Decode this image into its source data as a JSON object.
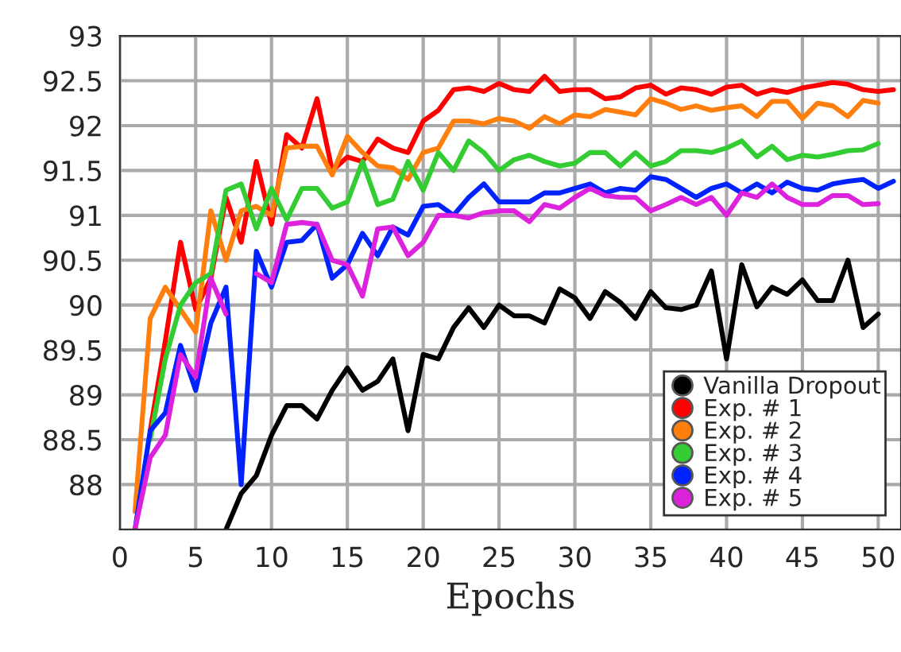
{
  "chart_data": {
    "type": "line",
    "xlabel": "Epochs",
    "xlim": [
      0,
      51.5
    ],
    "ylim": [
      87.5,
      93
    ],
    "xticks": [
      0,
      5,
      10,
      15,
      20,
      25,
      30,
      35,
      40,
      45,
      50
    ],
    "yticks": [
      88,
      88.5,
      89,
      89.5,
      90,
      90.5,
      91,
      91.5,
      92,
      92.5,
      93
    ],
    "grid": true,
    "legend": "bottom right",
    "marker": "none",
    "line_style": "solid",
    "series": [
      {
        "name": "Vanilla Dropout",
        "color": "#000000",
        "x": [
          7,
          8,
          9,
          10,
          11,
          12,
          13,
          14,
          15,
          16,
          17,
          18,
          19,
          20,
          21,
          22,
          23,
          24,
          25,
          26,
          27,
          28,
          29,
          30,
          31,
          32,
          33,
          34,
          35,
          36,
          37,
          38,
          39,
          40,
          41,
          42,
          43,
          44,
          45,
          46,
          47,
          48,
          49,
          50
        ],
        "values": [
          87.5,
          87.9,
          88.1,
          88.55,
          88.88,
          88.88,
          88.73,
          89.05,
          89.3,
          89.05,
          89.15,
          89.4,
          88.6,
          89.45,
          89.4,
          89.75,
          89.97,
          89.75,
          90.0,
          89.88,
          89.88,
          89.8,
          90.18,
          90.08,
          89.85,
          90.15,
          90.03,
          89.85,
          90.15,
          89.97,
          89.95,
          90.0,
          90.38,
          89.4,
          90.45,
          89.98,
          90.2,
          90.12,
          90.28,
          90.05,
          90.05,
          90.5,
          89.75,
          89.9
        ]
      },
      {
        "name": "Exp. # 1",
        "color": "#ff0000",
        "x": [
          2,
          3,
          4,
          5,
          6,
          7,
          8,
          9,
          10,
          11,
          12,
          13,
          14,
          15,
          16,
          17,
          18,
          19,
          20,
          21,
          22,
          23,
          24,
          25,
          26,
          27,
          28,
          29,
          30,
          31,
          32,
          33,
          34,
          35,
          36,
          37,
          38,
          39,
          40,
          41,
          42,
          43,
          44,
          45,
          46,
          47,
          48,
          49,
          50,
          51
        ],
        "values": [
          88.6,
          89.6,
          90.7,
          89.95,
          90.3,
          91.2,
          90.7,
          91.6,
          90.9,
          91.9,
          91.75,
          92.3,
          91.5,
          91.65,
          91.6,
          91.85,
          91.75,
          91.7,
          92.05,
          92.17,
          92.4,
          92.42,
          92.38,
          92.47,
          92.4,
          92.38,
          92.55,
          92.38,
          92.4,
          92.4,
          92.3,
          92.32,
          92.42,
          92.45,
          92.35,
          92.42,
          92.4,
          92.35,
          92.43,
          92.45,
          92.35,
          92.4,
          92.37,
          92.42,
          92.45,
          92.48,
          92.46,
          92.4,
          92.38,
          92.4
        ]
      },
      {
        "name": "Exp. # 2",
        "color": "#ff7f0e",
        "x": [
          1,
          2,
          3,
          4,
          5,
          6,
          7,
          8,
          9,
          10,
          11,
          12,
          13,
          14,
          15,
          16,
          17,
          18,
          19,
          20,
          21,
          22,
          23,
          24,
          25,
          26,
          27,
          28,
          29,
          30,
          31,
          32,
          33,
          34,
          35,
          36,
          37,
          38,
          39,
          40,
          41,
          42,
          43,
          44,
          45,
          46,
          47,
          48,
          49,
          50
        ],
        "values": [
          87.7,
          89.85,
          90.2,
          89.95,
          89.7,
          91.05,
          90.5,
          91.05,
          91.1,
          91.0,
          91.75,
          91.77,
          91.77,
          91.45,
          91.88,
          91.7,
          91.55,
          91.53,
          91.4,
          91.7,
          91.75,
          92.05,
          92.05,
          92.02,
          92.08,
          92.05,
          91.97,
          92.1,
          92.02,
          92.12,
          92.1,
          92.18,
          92.15,
          92.12,
          92.3,
          92.25,
          92.18,
          92.22,
          92.17,
          92.2,
          92.22,
          92.1,
          92.27,
          92.27,
          92.08,
          92.25,
          92.22,
          92.1,
          92.28,
          92.25
        ]
      },
      {
        "name": "Exp. # 3",
        "color": "#33cc33",
        "x": [
          2,
          3,
          4,
          5,
          6,
          7,
          8,
          9,
          10,
          11,
          12,
          13,
          14,
          15,
          16,
          17,
          18,
          19,
          20,
          21,
          22,
          23,
          24,
          25,
          26,
          27,
          28,
          29,
          30,
          31,
          32,
          33,
          34,
          35,
          36,
          37,
          38,
          39,
          40,
          41,
          42,
          43,
          44,
          45,
          46,
          47,
          48,
          49,
          50
        ],
        "values": [
          88.5,
          89.4,
          90.0,
          90.25,
          90.35,
          91.28,
          91.35,
          90.85,
          91.3,
          90.95,
          91.3,
          91.3,
          91.08,
          91.15,
          91.6,
          91.12,
          91.18,
          91.6,
          91.28,
          91.7,
          91.5,
          91.83,
          91.7,
          91.5,
          91.62,
          91.67,
          91.6,
          91.55,
          91.58,
          91.7,
          91.7,
          91.55,
          91.7,
          91.55,
          91.6,
          91.72,
          91.72,
          91.7,
          91.75,
          91.83,
          91.65,
          91.77,
          91.62,
          91.67,
          91.65,
          91.68,
          91.72,
          91.73,
          91.8
        ]
      },
      {
        "name": "Exp. # 4",
        "color": "#0022ff",
        "x": [
          1,
          2,
          3,
          4,
          5,
          6,
          7,
          8,
          9,
          10,
          11,
          12,
          13,
          14,
          15,
          16,
          17,
          18,
          19,
          20,
          21,
          22,
          23,
          24,
          25,
          26,
          27,
          28,
          29,
          30,
          31,
          32,
          33,
          34,
          35,
          36,
          37,
          38,
          39,
          40,
          41,
          42,
          43,
          44,
          45,
          46,
          47,
          48,
          49,
          50,
          51
        ],
        "values": [
          87.5,
          88.6,
          88.8,
          89.55,
          89.05,
          89.8,
          90.2,
          88.0,
          90.6,
          90.2,
          90.7,
          90.72,
          90.9,
          90.3,
          90.45,
          90.8,
          90.55,
          90.87,
          90.78,
          91.1,
          91.12,
          91.0,
          91.2,
          91.35,
          91.15,
          91.15,
          91.15,
          91.25,
          91.25,
          91.3,
          91.35,
          91.25,
          91.3,
          91.28,
          91.43,
          91.4,
          91.3,
          91.2,
          91.3,
          91.35,
          91.25,
          91.35,
          91.25,
          91.37,
          91.3,
          91.28,
          91.35,
          91.38,
          91.4,
          91.3,
          91.38
        ]
      },
      {
        "name": "Exp. # 5",
        "color": "#dd22dd",
        "x": [
          1,
          2,
          3,
          4,
          5,
          6,
          7,
          8,
          9,
          10,
          11,
          12,
          13,
          14,
          15,
          16,
          17,
          18,
          19,
          20,
          21,
          22,
          23,
          24,
          25,
          26,
          27,
          28,
          29,
          30,
          31,
          32,
          33,
          34,
          35,
          36,
          37,
          38,
          39,
          40,
          41,
          42,
          43,
          44,
          45,
          46,
          47,
          48,
          49,
          50
        ],
        "values": [
          87.5,
          88.3,
          88.55,
          89.45,
          89.2,
          90.3,
          89.9,
          null,
          90.35,
          90.25,
          90.9,
          90.92,
          90.9,
          90.5,
          90.45,
          90.1,
          90.85,
          90.87,
          90.55,
          90.7,
          91.0,
          91.0,
          90.97,
          91.03,
          91.05,
          91.05,
          90.93,
          91.12,
          91.08,
          91.2,
          91.3,
          91.22,
          91.2,
          91.2,
          91.05,
          91.12,
          91.2,
          91.12,
          91.2,
          91.0,
          91.25,
          91.2,
          91.35,
          91.2,
          91.12,
          91.12,
          91.22,
          91.22,
          91.12,
          91.13
        ]
      }
    ]
  }
}
